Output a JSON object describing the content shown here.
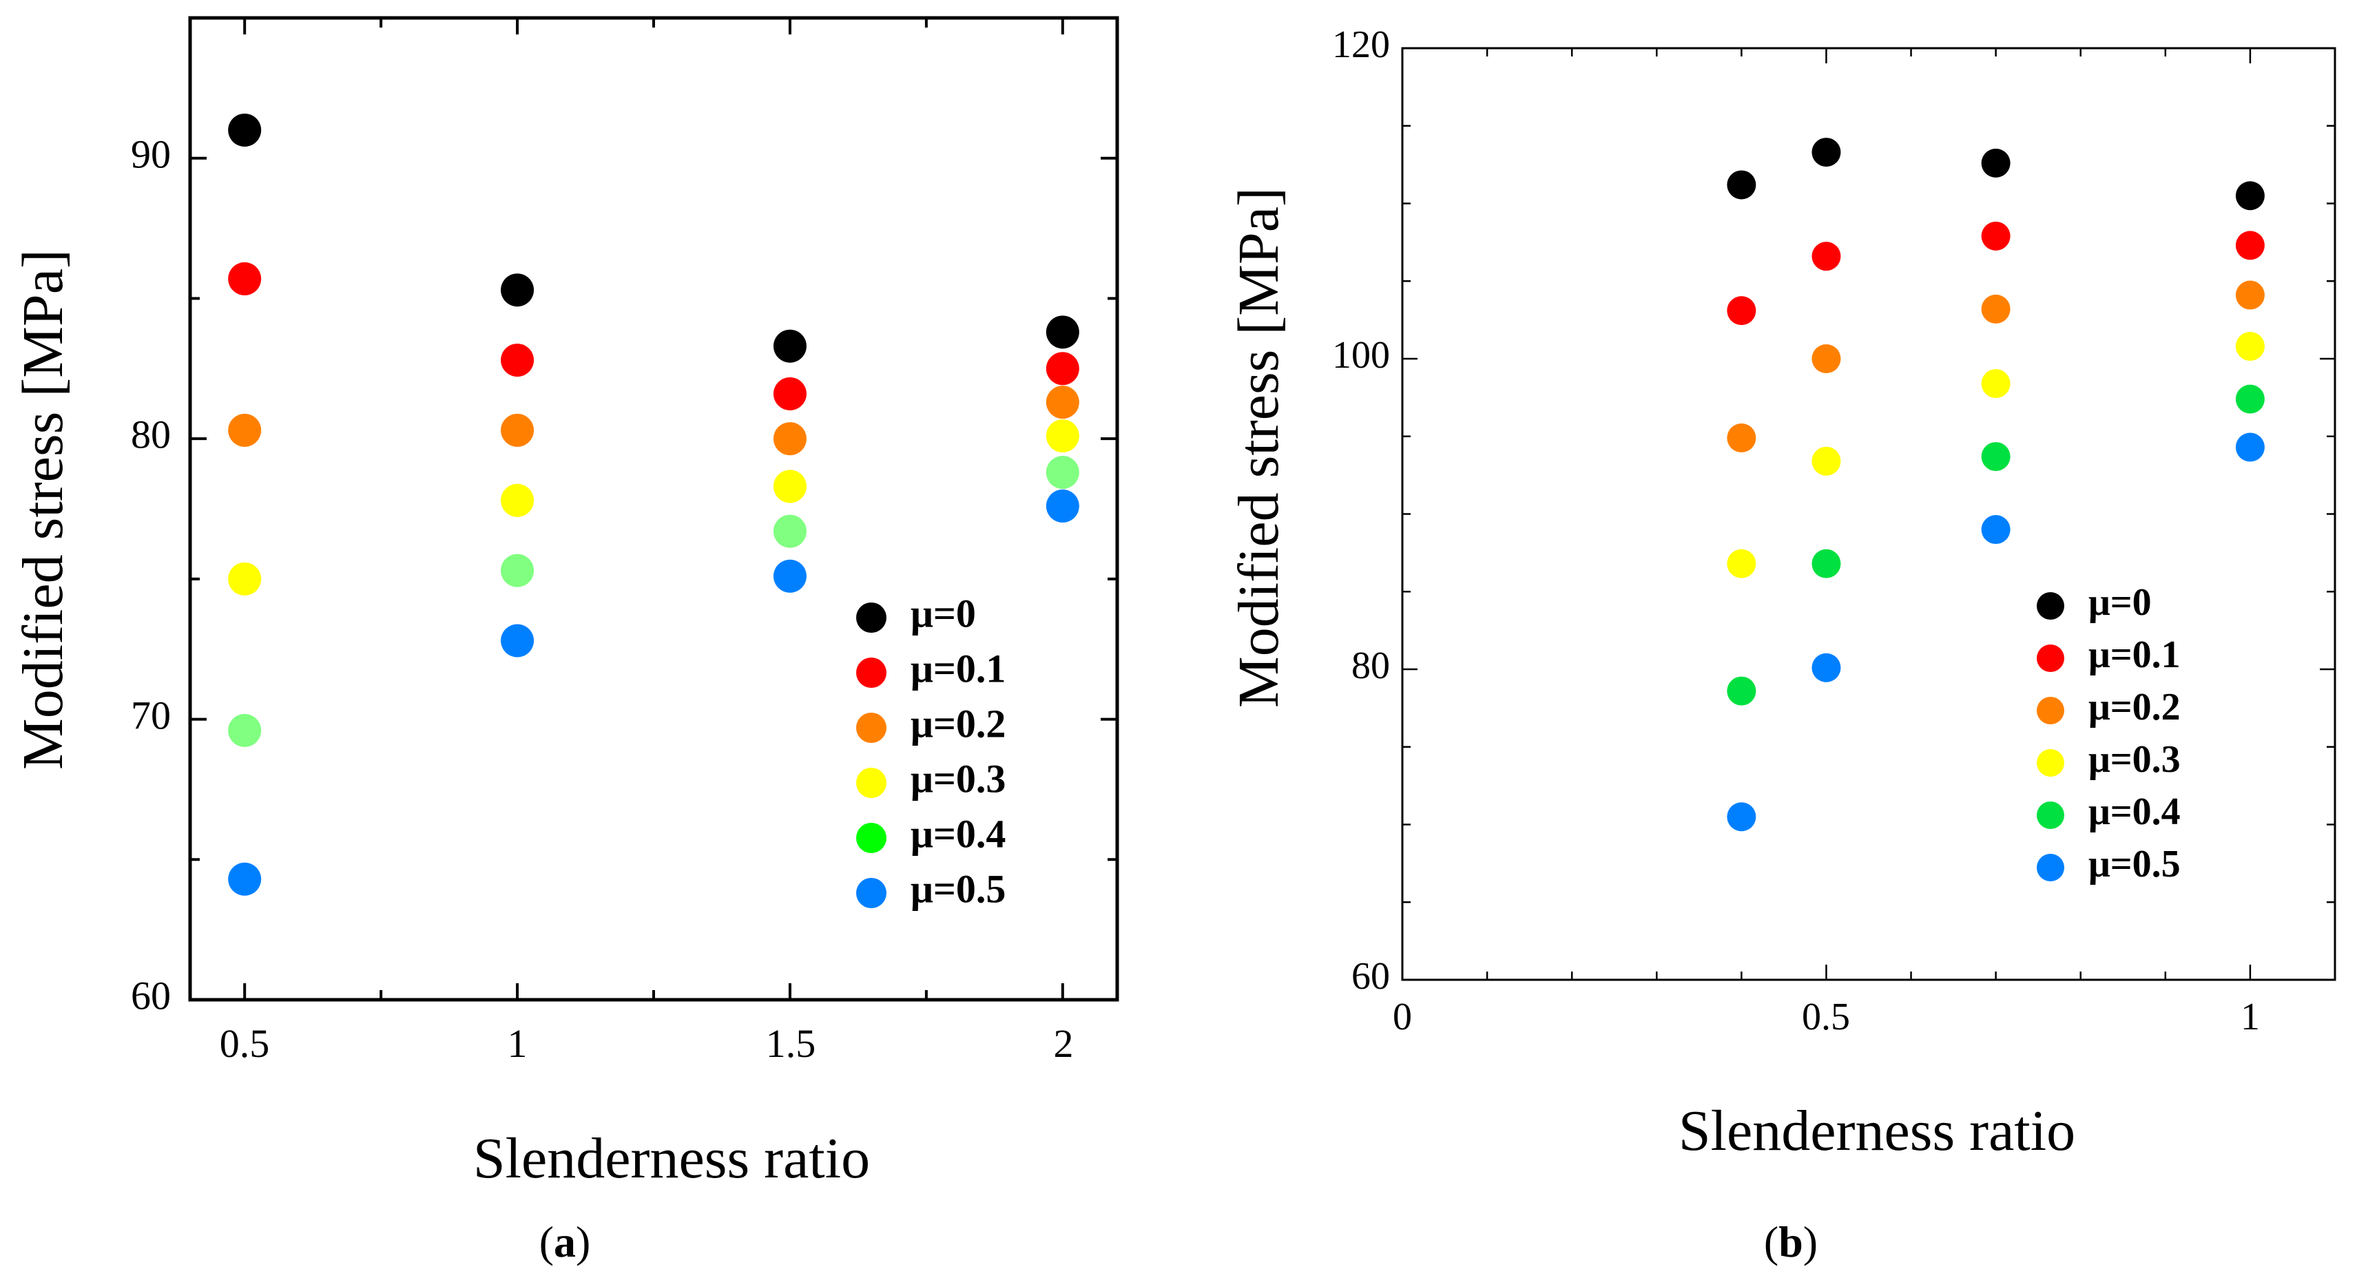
{
  "chart_data": [
    {
      "type": "scatter",
      "panel_label_letter": "a",
      "xlabel": "Slenderness ratio",
      "ylabel": "Modified stress [MPa]",
      "xlim": [
        0.4,
        2.1
      ],
      "ylim": [
        60,
        95
      ],
      "xticks": [
        0.5,
        1,
        1.5,
        2
      ],
      "xtick_labels": [
        "0.5",
        "1",
        "1.5",
        "2"
      ],
      "xminor": [
        0.75,
        1.25,
        1.75
      ],
      "yticks": [
        60,
        70,
        80,
        90
      ],
      "ytick_labels": [
        "60",
        "70",
        "80",
        "90"
      ],
      "yminor": [
        65,
        75,
        85
      ],
      "grid": false,
      "legend_position": "bottom-right",
      "series": [
        {
          "name": "μ=0",
          "color": "#000000",
          "x": [
            0.5,
            1,
            1.5,
            2
          ],
          "y": [
            91.0,
            85.3,
            83.3,
            83.8
          ]
        },
        {
          "name": "μ=0.1",
          "color": "#ff0000",
          "x": [
            0.5,
            1,
            1.5,
            2
          ],
          "y": [
            85.7,
            82.8,
            81.6,
            82.5
          ]
        },
        {
          "name": "μ=0.2",
          "color": "#ff8000",
          "x": [
            0.5,
            1,
            1.5,
            2
          ],
          "y": [
            80.3,
            80.3,
            80.0,
            81.3
          ]
        },
        {
          "name": "μ=0.3",
          "color": "#ffff00",
          "x": [
            0.5,
            1,
            1.5,
            2
          ],
          "y": [
            75.0,
            77.8,
            78.3,
            80.1
          ]
        },
        {
          "name": "μ=0.4",
          "color": "#80ff80",
          "legend_color": "#00ff00",
          "x": [
            0.5,
            1,
            1.5,
            2
          ],
          "y": [
            69.6,
            75.3,
            76.7,
            78.8
          ]
        },
        {
          "name": "μ=0.5",
          "color": "#0080ff",
          "x": [
            0.5,
            1,
            1.5,
            2
          ],
          "y": [
            64.3,
            72.8,
            75.1,
            77.6
          ]
        }
      ]
    },
    {
      "type": "scatter",
      "panel_label_letter": "b",
      "xlabel": "Slenderness ratio",
      "ylabel": "Modified stress [MPa]",
      "xlim": [
        0,
        1.1
      ],
      "ylim": [
        60,
        120
      ],
      "xticks": [
        0,
        0.5,
        1
      ],
      "xtick_labels": [
        "0",
        "0.5",
        "1"
      ],
      "yticks": [
        60,
        80,
        100,
        120
      ],
      "ytick_labels": [
        "60",
        "80",
        "100",
        "120"
      ],
      "grid": false,
      "legend_position": "bottom-right",
      "series": [
        {
          "name": "μ=0",
          "color": "#000000",
          "x": [
            0.4,
            0.5,
            0.7,
            1
          ],
          "y": [
            111.2,
            113.3,
            112.6,
            110.5
          ]
        },
        {
          "name": "μ=0.1",
          "color": "#ff0000",
          "x": [
            0.4,
            0.5,
            0.7,
            1
          ],
          "y": [
            103.1,
            106.6,
            107.9,
            107.3
          ]
        },
        {
          "name": "μ=0.2",
          "color": "#ff8000",
          "x": [
            0.4,
            0.5,
            0.7,
            1
          ],
          "y": [
            94.9,
            100.0,
            103.2,
            104.1
          ]
        },
        {
          "name": "μ=0.3",
          "color": "#ffff00",
          "x": [
            0.4,
            0.5,
            0.7,
            1
          ],
          "y": [
            86.8,
            93.4,
            98.4,
            100.8
          ]
        },
        {
          "name": "μ=0.4",
          "color": "#00e040",
          "x": [
            0.4,
            0.5,
            0.7,
            1
          ],
          "y": [
            78.6,
            86.8,
            93.7,
            97.4
          ]
        },
        {
          "name": "μ=0.5",
          "color": "#0080ff",
          "x": [
            0.4,
            0.5,
            0.7,
            1
          ],
          "y": [
            70.5,
            80.1,
            89.0,
            94.3
          ]
        }
      ]
    }
  ]
}
